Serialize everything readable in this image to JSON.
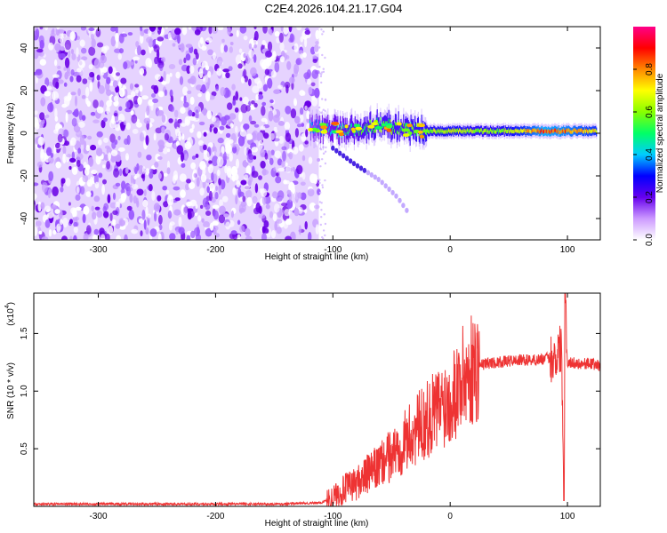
{
  "title": "C2E4.2026.104.21.17.G04",
  "chart_data": [
    {
      "type": "heatmap",
      "xlabel": "Height of straight line (km)",
      "ylabel": "Frequency (Hz)",
      "xlim": [
        -355,
        128
      ],
      "ylim": [
        -50,
        50
      ],
      "xticks": [
        -300,
        -200,
        -100,
        0,
        100
      ],
      "yticks": [
        -40,
        -20,
        0,
        20,
        40
      ],
      "colorbar": {
        "label": "Normalized spectral amplitude",
        "range": [
          0,
          1
        ],
        "ticks": [
          "0.0",
          "0.2",
          "0.4",
          "0.6",
          "0.8"
        ],
        "colors": [
          "#ffffff",
          "#cc99ff",
          "#6600ee",
          "#0000ff",
          "#00ccff",
          "#00ff66",
          "#88ff00",
          "#ffff00",
          "#ff8800",
          "#ff0000",
          "#ff0088"
        ]
      },
      "noise_region_x": [
        -355,
        -112
      ],
      "signal_band": [
        {
          "x": -120,
          "y": 3,
          "amp": 0.35
        },
        {
          "x": -100,
          "y": 2,
          "amp": 0.45
        },
        {
          "x": -80,
          "y": 1,
          "amp": 0.5
        },
        {
          "x": -60,
          "y": 4,
          "amp": 0.55
        },
        {
          "x": -40,
          "y": 2,
          "amp": 0.55
        },
        {
          "x": -20,
          "y": 1,
          "amp": 0.6
        },
        {
          "x": 0,
          "y": 1,
          "amp": 0.65
        },
        {
          "x": 20,
          "y": 1,
          "amp": 0.6
        },
        {
          "x": 40,
          "y": 1,
          "amp": 0.6
        },
        {
          "x": 60,
          "y": 1,
          "amp": 0.7
        },
        {
          "x": 80,
          "y": 1,
          "amp": 0.85
        },
        {
          "x": 100,
          "y": 1,
          "amp": 0.8
        },
        {
          "x": 125,
          "y": 1,
          "amp": 0.7
        }
      ],
      "descending_trace": [
        {
          "x": -100,
          "y": -7
        },
        {
          "x": -80,
          "y": -15
        },
        {
          "x": -60,
          "y": -22
        },
        {
          "x": -45,
          "y": -30
        },
        {
          "x": -36,
          "y": -37
        }
      ]
    },
    {
      "type": "line",
      "xlabel": "Height of straight line (km)",
      "ylabel": "SNR (10 * v/v)",
      "multiplier_label": "(x10",
      "multiplier_exp": "4",
      "multiplier_close": ")",
      "xlim": [
        -355,
        128
      ],
      "ylim": [
        0,
        1.85
      ],
      "xticks": [
        -300,
        -200,
        -100,
        0,
        100
      ],
      "yticks": [
        "0.5",
        "1.0",
        "1.5"
      ],
      "series": [
        {
          "name": "SNR",
          "color": "#ee3333",
          "x": [
            -355,
            -300,
            -250,
            -200,
            -150,
            -110,
            -100,
            -90,
            -80,
            -70,
            -60,
            -50,
            -40,
            -30,
            -20,
            -10,
            0,
            10,
            20,
            30,
            40,
            50,
            60,
            70,
            80,
            90,
            95,
            97,
            98,
            100,
            110,
            120,
            128
          ],
          "y": [
            0.02,
            0.02,
            0.02,
            0.02,
            0.02,
            0.03,
            0.08,
            0.15,
            0.2,
            0.28,
            0.35,
            0.45,
            0.55,
            0.65,
            0.75,
            0.85,
            0.95,
            1.1,
            1.2,
            1.24,
            1.25,
            1.26,
            1.27,
            1.27,
            1.28,
            1.3,
            1.4,
            0.05,
            1.85,
            1.25,
            1.24,
            1.24,
            1.22
          ]
        }
      ]
    }
  ]
}
